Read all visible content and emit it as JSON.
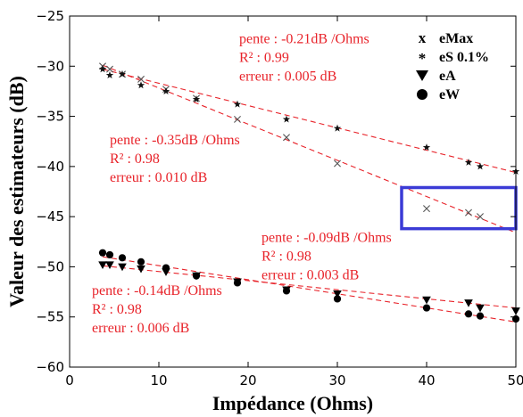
{
  "chart_data": {
    "type": "scatter",
    "xlabel": "Impédance (Ohms)",
    "ylabel": "Valeur des estimateurs (dB)",
    "xlim": [
      0,
      50
    ],
    "ylim": [
      -60,
      -25
    ],
    "xticks": [
      0,
      10,
      20,
      30,
      40,
      50
    ],
    "yticks": [
      -60,
      -55,
      -50,
      -45,
      -40,
      -35,
      -30,
      -25
    ],
    "xtick_labels": [
      "0",
      "10",
      "20",
      "30",
      "40",
      "50"
    ],
    "ytick_labels": [
      "−60",
      "−55",
      "−50",
      "−45",
      "−40",
      "−35",
      "−30",
      "−25"
    ],
    "grid": false,
    "legend_position": "top-right",
    "series": [
      {
        "name": "eMax",
        "marker": "x",
        "color": "#555555",
        "x": [
          3.7,
          4.5,
          5.9,
          8.0,
          10.8,
          14.2,
          18.8,
          24.3,
          30.0,
          40.0,
          44.7,
          46.0
        ],
        "y": [
          -30.0,
          -30.3,
          -30.8,
          -31.3,
          -32.3,
          -33.2,
          -35.3,
          -37.1,
          -39.7,
          -44.2,
          -44.6,
          -45.0
        ]
      },
      {
        "name": "eS  0.1%",
        "marker": "*",
        "color": "#111111",
        "x": [
          3.7,
          4.5,
          5.9,
          8.0,
          10.8,
          14.2,
          18.8,
          24.3,
          30.0,
          40.0,
          44.7,
          46.0,
          50.0
        ],
        "y": [
          -30.3,
          -30.9,
          -30.8,
          -31.9,
          -32.5,
          -33.3,
          -33.8,
          -35.3,
          -36.2,
          -38.1,
          -39.6,
          -40.0,
          -40.5
        ]
      },
      {
        "name": "eA",
        "marker": "triangle-down",
        "color": "#000000",
        "x": [
          3.7,
          4.5,
          5.9,
          8.0,
          10.8,
          14.2,
          18.8,
          24.3,
          30.0,
          40.0,
          44.7,
          46.0,
          50.0
        ],
        "y": [
          -49.8,
          -49.8,
          -50.0,
          -50.2,
          -50.5,
          -50.9,
          -51.5,
          -52.3,
          -52.7,
          -53.3,
          -53.6,
          -54.1,
          -54.4
        ]
      },
      {
        "name": "eW",
        "marker": "circle",
        "color": "#000000",
        "x": [
          3.7,
          4.5,
          5.9,
          8.0,
          10.8,
          14.2,
          18.8,
          24.3,
          30.0,
          40.0,
          44.7,
          46.0,
          50.0
        ],
        "y": [
          -48.6,
          -48.8,
          -49.1,
          -49.5,
          -50.1,
          -50.9,
          -51.6,
          -52.4,
          -53.2,
          -54.1,
          -54.7,
          -54.9,
          -55.2
        ]
      }
    ],
    "fit_lines": [
      {
        "x": [
          3.7,
          50.0
        ],
        "y": [
          -29.9,
          -46.6
        ],
        "color": "#e8232a",
        "style": "dashed"
      },
      {
        "x": [
          3.7,
          50.0
        ],
        "y": [
          -30.3,
          -40.6
        ],
        "color": "#e8232a",
        "style": "dashed"
      },
      {
        "x": [
          3.7,
          50.0
        ],
        "y": [
          -49.9,
          -54.1
        ],
        "color": "#e8232a",
        "style": "dashed"
      },
      {
        "x": [
          3.7,
          50.0
        ],
        "y": [
          -49.0,
          -55.5
        ],
        "color": "#e8232a",
        "style": "dashed"
      }
    ],
    "annotations": [
      {
        "lines": [
          "pente : -0.21dB /Ohms",
          "R² : 0.99",
          "erreur : 0.005 dB"
        ],
        "x": 19.0,
        "y": -27.7
      },
      {
        "lines": [
          "pente : -0.35dB /Ohms",
          "R² : 0.98",
          "erreur : 0.010 dB"
        ],
        "x": 4.5,
        "y": -37.8
      },
      {
        "lines": [
          "pente : -0.09dB /Ohms",
          "R² : 0.98",
          "erreur : 0.003 dB"
        ],
        "x": 21.5,
        "y": -47.5
      },
      {
        "lines": [
          "pente : -0.14dB /Ohms",
          "R² : 0.98",
          "erreur : 0.006 dB"
        ],
        "x": 2.5,
        "y": -52.8
      }
    ],
    "highlight_box": {
      "x0": 37.2,
      "x1": 50.0,
      "y0": -46.2,
      "y1": -42.1,
      "color": "#3b3bd6"
    },
    "legend": [
      {
        "symbol": "x",
        "label": "eMax"
      },
      {
        "symbol": "*",
        "label": "eS  0.1%"
      },
      {
        "symbol": "triangle-down",
        "label": "eA"
      },
      {
        "symbol": "circle",
        "label": "eW"
      }
    ]
  }
}
